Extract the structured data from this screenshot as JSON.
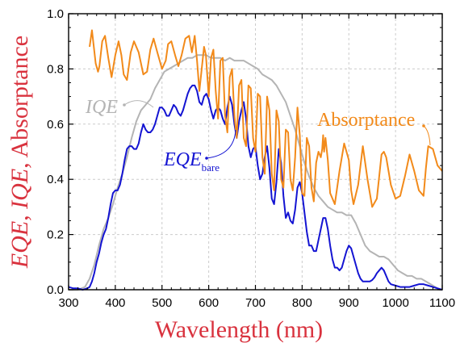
{
  "chart_data": {
    "type": "line",
    "xlabel": "Wavelength (nm)",
    "ylabel_parts": [
      {
        "text": "EQE",
        "italic": true
      },
      {
        "text": ", ",
        "italic": false
      },
      {
        "text": "IQE",
        "italic": true
      },
      {
        "text": ", Absorptance",
        "italic": false
      }
    ],
    "xlim": [
      300,
      1100
    ],
    "ylim": [
      0.0,
      1.0
    ],
    "xticks": [
      "300",
      "400",
      "500",
      "600",
      "700",
      "800",
      "900",
      "1000",
      "1100"
    ],
    "yticks": [
      "0.0",
      "0.2",
      "0.4",
      "0.6",
      "0.8",
      "1.0"
    ],
    "grid": true,
    "colors": {
      "label": "#d9323e",
      "grid": "#cccccc",
      "axis": "#000000"
    },
    "series": [
      {
        "name": "Absorptance",
        "color": "#f28a1a",
        "annotation": {
          "text": "Absorptance",
          "italic": false,
          "sub": ""
        },
        "x": [
          345,
          350,
          358,
          363,
          366,
          372,
          378,
          385,
          392,
          400,
          407,
          413,
          418,
          425,
          433,
          440,
          450,
          460,
          468,
          475,
          482,
          490,
          500,
          508,
          513,
          520,
          528,
          535,
          542,
          550,
          558,
          564,
          570,
          575,
          580,
          585,
          590,
          594,
          600,
          605,
          610,
          615,
          620,
          625,
          630,
          635,
          640,
          645,
          650,
          655,
          660,
          665,
          670,
          675,
          680,
          685,
          690,
          695,
          700,
          705,
          710,
          715,
          720,
          725,
          730,
          735,
          740,
          745,
          750,
          755,
          760,
          765,
          770,
          775,
          780,
          785,
          790,
          795,
          800,
          805,
          810,
          815,
          820,
          825,
          830,
          835,
          840,
          843,
          845,
          847,
          850,
          855,
          860,
          870,
          880,
          890,
          900,
          905,
          910,
          920,
          930,
          940,
          950,
          960,
          970,
          975,
          980,
          990,
          1000,
          1010,
          1020,
          1030,
          1040,
          1050,
          1060,
          1065,
          1070,
          1080,
          1090,
          1100
        ],
        "y": [
          0.88,
          0.94,
          0.82,
          0.79,
          0.81,
          0.9,
          0.92,
          0.84,
          0.77,
          0.85,
          0.9,
          0.85,
          0.78,
          0.76,
          0.86,
          0.9,
          0.86,
          0.78,
          0.79,
          0.87,
          0.91,
          0.86,
          0.8,
          0.83,
          0.89,
          0.9,
          0.85,
          0.81,
          0.85,
          0.91,
          0.92,
          0.86,
          0.92,
          0.83,
          0.72,
          0.8,
          0.88,
          0.85,
          0.7,
          0.84,
          0.87,
          0.72,
          0.62,
          0.83,
          0.84,
          0.63,
          0.57,
          0.77,
          0.8,
          0.63,
          0.55,
          0.74,
          0.76,
          0.55,
          0.52,
          0.74,
          0.73,
          0.55,
          0.5,
          0.71,
          0.7,
          0.48,
          0.42,
          0.7,
          0.65,
          0.42,
          0.36,
          0.65,
          0.61,
          0.4,
          0.37,
          0.58,
          0.57,
          0.4,
          0.36,
          0.48,
          0.66,
          0.56,
          0.35,
          0.34,
          0.55,
          0.52,
          0.37,
          0.32,
          0.46,
          0.5,
          0.48,
          0.51,
          0.56,
          0.5,
          0.55,
          0.47,
          0.35,
          0.31,
          0.43,
          0.53,
          0.47,
          0.36,
          0.31,
          0.38,
          0.52,
          0.4,
          0.3,
          0.33,
          0.49,
          0.5,
          0.48,
          0.38,
          0.33,
          0.34,
          0.41,
          0.49,
          0.43,
          0.36,
          0.34,
          0.44,
          0.52,
          0.51,
          0.45,
          0.43
        ]
      },
      {
        "name": "IQE",
        "color": "#b4b4b4",
        "annotation": {
          "text": "IQE",
          "italic": true,
          "sub": ""
        },
        "x": [
          300,
          320,
          335,
          345,
          355,
          365,
          375,
          385,
          395,
          405,
          415,
          425,
          435,
          445,
          455,
          465,
          475,
          485,
          495,
          505,
          515,
          525,
          535,
          545,
          555,
          565,
          575,
          585,
          595,
          605,
          615,
          625,
          635,
          645,
          655,
          665,
          675,
          685,
          695,
          705,
          715,
          725,
          735,
          745,
          755,
          765,
          775,
          785,
          795,
          805,
          815,
          825,
          835,
          845,
          855,
          865,
          875,
          885,
          895,
          905,
          915,
          925,
          935,
          945,
          955,
          965,
          975,
          985,
          995,
          1005,
          1015,
          1025,
          1035,
          1045,
          1055,
          1065,
          1075,
          1085,
          1095,
          1100
        ],
        "y": [
          0.0,
          0.0,
          0.01,
          0.04,
          0.09,
          0.16,
          0.22,
          0.26,
          0.31,
          0.37,
          0.42,
          0.48,
          0.55,
          0.61,
          0.65,
          0.67,
          0.69,
          0.73,
          0.76,
          0.79,
          0.8,
          0.81,
          0.82,
          0.83,
          0.84,
          0.84,
          0.85,
          0.85,
          0.85,
          0.84,
          0.84,
          0.84,
          0.83,
          0.84,
          0.83,
          0.83,
          0.83,
          0.82,
          0.81,
          0.8,
          0.78,
          0.77,
          0.76,
          0.74,
          0.71,
          0.68,
          0.63,
          0.58,
          0.52,
          0.46,
          0.41,
          0.37,
          0.34,
          0.32,
          0.3,
          0.29,
          0.28,
          0.28,
          0.27,
          0.27,
          0.24,
          0.2,
          0.16,
          0.14,
          0.13,
          0.12,
          0.12,
          0.11,
          0.09,
          0.07,
          0.06,
          0.05,
          0.05,
          0.04,
          0.04,
          0.03,
          0.02,
          0.01,
          0.0,
          0.0
        ]
      },
      {
        "name": "EQE_bare",
        "color": "#1414d2",
        "annotation": {
          "text": "EQE",
          "italic": true,
          "sub": "bare"
        },
        "x": [
          300,
          310,
          320,
          330,
          340,
          345,
          350,
          355,
          360,
          365,
          370,
          375,
          380,
          385,
          390,
          395,
          400,
          405,
          410,
          415,
          420,
          425,
          430,
          435,
          440,
          445,
          450,
          455,
          460,
          465,
          470,
          475,
          480,
          485,
          490,
          495,
          500,
          505,
          510,
          515,
          520,
          525,
          530,
          535,
          540,
          545,
          550,
          555,
          560,
          565,
          570,
          575,
          580,
          585,
          590,
          595,
          600,
          605,
          610,
          615,
          620,
          625,
          630,
          635,
          640,
          645,
          650,
          655,
          660,
          665,
          670,
          675,
          680,
          685,
          690,
          695,
          700,
          705,
          710,
          715,
          720,
          725,
          730,
          735,
          740,
          745,
          750,
          755,
          760,
          765,
          770,
          775,
          780,
          785,
          790,
          795,
          800,
          805,
          810,
          815,
          820,
          825,
          830,
          835,
          840,
          845,
          850,
          855,
          860,
          865,
          870,
          875,
          880,
          885,
          890,
          895,
          900,
          905,
          910,
          915,
          920,
          925,
          930,
          935,
          940,
          945,
          950,
          955,
          960,
          965,
          970,
          975,
          980,
          985,
          990,
          1000,
          1010,
          1020,
          1030,
          1040,
          1050,
          1060,
          1070,
          1080,
          1090,
          1100
        ],
        "y": [
          0.01,
          0.005,
          0.005,
          0.0,
          0.005,
          0.01,
          0.03,
          0.06,
          0.1,
          0.13,
          0.17,
          0.2,
          0.22,
          0.26,
          0.31,
          0.35,
          0.36,
          0.36,
          0.38,
          0.42,
          0.47,
          0.51,
          0.52,
          0.52,
          0.51,
          0.51,
          0.53,
          0.57,
          0.6,
          0.58,
          0.57,
          0.57,
          0.58,
          0.6,
          0.63,
          0.66,
          0.66,
          0.65,
          0.63,
          0.63,
          0.65,
          0.67,
          0.66,
          0.64,
          0.63,
          0.65,
          0.68,
          0.71,
          0.73,
          0.74,
          0.74,
          0.72,
          0.68,
          0.67,
          0.7,
          0.71,
          0.69,
          0.65,
          0.62,
          0.65,
          0.66,
          0.65,
          0.62,
          0.6,
          0.66,
          0.7,
          0.67,
          0.6,
          0.55,
          0.61,
          0.65,
          0.68,
          0.62,
          0.52,
          0.48,
          0.51,
          0.52,
          0.45,
          0.4,
          0.42,
          0.48,
          0.52,
          0.44,
          0.33,
          0.31,
          0.39,
          0.51,
          0.46,
          0.34,
          0.26,
          0.28,
          0.25,
          0.24,
          0.29,
          0.37,
          0.39,
          0.35,
          0.28,
          0.21,
          0.16,
          0.16,
          0.14,
          0.14,
          0.18,
          0.22,
          0.26,
          0.26,
          0.22,
          0.16,
          0.11,
          0.08,
          0.08,
          0.07,
          0.08,
          0.11,
          0.14,
          0.16,
          0.15,
          0.12,
          0.09,
          0.06,
          0.04,
          0.03,
          0.03,
          0.03,
          0.03,
          0.035,
          0.045,
          0.06,
          0.07,
          0.08,
          0.07,
          0.05,
          0.03,
          0.02,
          0.015,
          0.01,
          0.01,
          0.01,
          0.015,
          0.02,
          0.02,
          0.015,
          0.01,
          0.005,
          0.0
        ]
      }
    ]
  }
}
